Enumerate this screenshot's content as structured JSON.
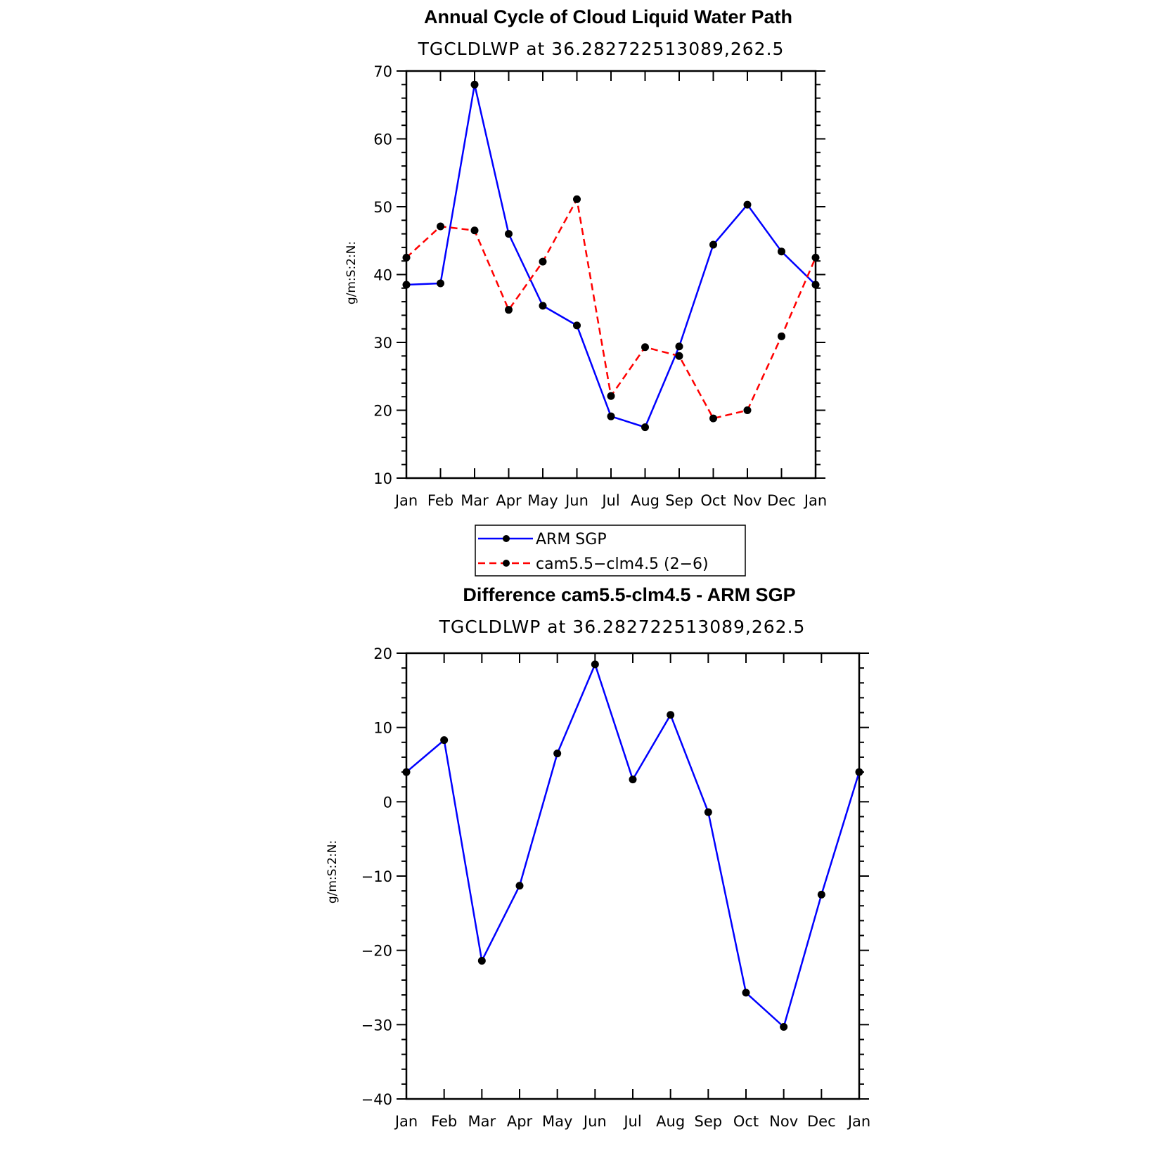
{
  "chart_data": [
    {
      "type": "line",
      "title": "Annual Cycle of Cloud Liquid Water Path",
      "subtitle": "TGCLDLWP at 36.282722513089,262.5",
      "ylabel": "g/m:S:2:N:",
      "categories": [
        "Jan",
        "Feb",
        "Mar",
        "Apr",
        "May",
        "Jun",
        "Jul",
        "Aug",
        "Sep",
        "Oct",
        "Nov",
        "Dec",
        "Jan"
      ],
      "ylim": [
        10,
        70
      ],
      "yticks": [
        10,
        20,
        30,
        40,
        50,
        60,
        70
      ],
      "series": [
        {
          "name": "ARM SGP",
          "color": "#0000ff",
          "dash": "solid",
          "values": [
            38.5,
            38.7,
            68,
            46,
            35.4,
            32.5,
            19.1,
            17.5,
            29.4,
            44.4,
            50.3,
            43.4,
            38.5
          ]
        },
        {
          "name": "cam5.5−clm4.5 (2−6)",
          "color": "#ff0000",
          "dash": "dashed",
          "values": [
            42.5,
            47.1,
            46.5,
            34.8,
            41.9,
            51.1,
            22.1,
            29.3,
            28,
            18.8,
            20,
            30.9,
            42.5
          ]
        }
      ],
      "legend": {
        "placement": "bottom-center",
        "entries": [
          "ARM SGP",
          "cam5.5−clm4.5 (2−6)"
        ]
      }
    },
    {
      "type": "line",
      "title": "Difference cam5.5-clm4.5 - ARM SGP",
      "subtitle": "TGCLDLWP at 36.282722513089,262.5",
      "ylabel": "g/m:S:2:N:",
      "categories": [
        "Jan",
        "Feb",
        "Mar",
        "Apr",
        "May",
        "Jun",
        "Jul",
        "Aug",
        "Sep",
        "Oct",
        "Nov",
        "Dec",
        "Jan"
      ],
      "ylim": [
        -40,
        20
      ],
      "yticks": [
        -40,
        -30,
        -20,
        -10,
        0,
        10,
        20
      ],
      "ytick_labels": [
        "−40",
        "−30",
        "−20",
        "−10",
        "0",
        "10",
        "20"
      ],
      "series": [
        {
          "color": "#0000ff",
          "dash": "solid",
          "values": [
            4,
            8.3,
            -21.4,
            -11.3,
            6.5,
            18.5,
            3,
            11.7,
            -1.4,
            -25.7,
            -30.3,
            -12.5,
            4
          ]
        }
      ]
    }
  ]
}
